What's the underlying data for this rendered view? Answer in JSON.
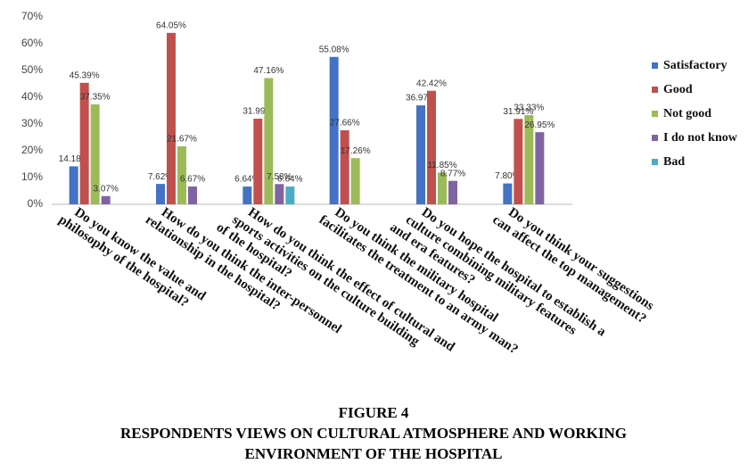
{
  "chart_data": {
    "type": "bar",
    "categories": [
      [
        "Do you know the value and",
        "philosophy of the hospital?"
      ],
      [
        "How do you think the inter-personnel",
        "relationship in the hospital?"
      ],
      [
        "How do you think the effect of cultural and",
        "sports activities on the culture building",
        "of the hospital?"
      ],
      [
        "Do you think the military hospital",
        "facilitates the treatment to an army man?"
      ],
      [
        "Do you hope the hospital to establish a",
        "culture combining military features",
        "and era features?"
      ],
      [
        "Do you think your suggestions",
        "can affect the top management?"
      ]
    ],
    "series": [
      {
        "name": "Satisfactory",
        "color": "#4472c4",
        "values": [
          14.18,
          7.62,
          6.64,
          55.08,
          36.97,
          7.8
        ],
        "value_labels": [
          "14.18%",
          "7.62%",
          "6.64%",
          "55.08%",
          "36.97%",
          "7.80%"
        ]
      },
      {
        "name": "Good",
        "color": "#c0504d",
        "values": [
          45.39,
          64.05,
          31.99,
          27.66,
          42.42,
          31.91
        ],
        "value_labels": [
          "45.39%",
          "64.05%",
          "31.99%",
          "27.66%",
          "42.42%",
          "31.91%"
        ]
      },
      {
        "name": "Not good",
        "color": "#9bbb59",
        "values": [
          37.35,
          21.67,
          47.16,
          17.26,
          11.85,
          33.33
        ],
        "value_labels": [
          "37.35%",
          "21.67%",
          "47.16%",
          "17.26%",
          "11.85%",
          "33.33%"
        ]
      },
      {
        "name": "I do not know",
        "color": "#8064a2",
        "values": [
          3.07,
          6.67,
          7.58,
          null,
          8.77,
          26.95
        ],
        "value_labels": [
          "3.07%",
          "6.67%",
          "7.58%",
          null,
          "8.77%",
          "26.95%"
        ]
      },
      {
        "name": "Bad",
        "color": "#4bacc6",
        "values": [
          null,
          null,
          6.64,
          null,
          null,
          null
        ],
        "value_labels": [
          null,
          null,
          "6.64%",
          null,
          null,
          null
        ]
      }
    ],
    "ylim": [
      0,
      70
    ],
    "yticks": [
      {
        "value": 0,
        "label": "0%"
      },
      {
        "value": 10,
        "label": "10%"
      },
      {
        "value": 20,
        "label": "20%"
      },
      {
        "value": 30,
        "label": "30%"
      },
      {
        "value": 40,
        "label": "40%"
      },
      {
        "value": 50,
        "label": "50%"
      },
      {
        "value": 60,
        "label": "60%"
      },
      {
        "value": 70,
        "label": "70%"
      }
    ],
    "grid": false,
    "legend": "right",
    "caption": [
      "FIGURE 4",
      "RESPONDENTS VIEWS ON CULTURAL ATMOSPHERE AND WORKING",
      "ENVIRONMENT OF THE HOSPITAL"
    ]
  }
}
